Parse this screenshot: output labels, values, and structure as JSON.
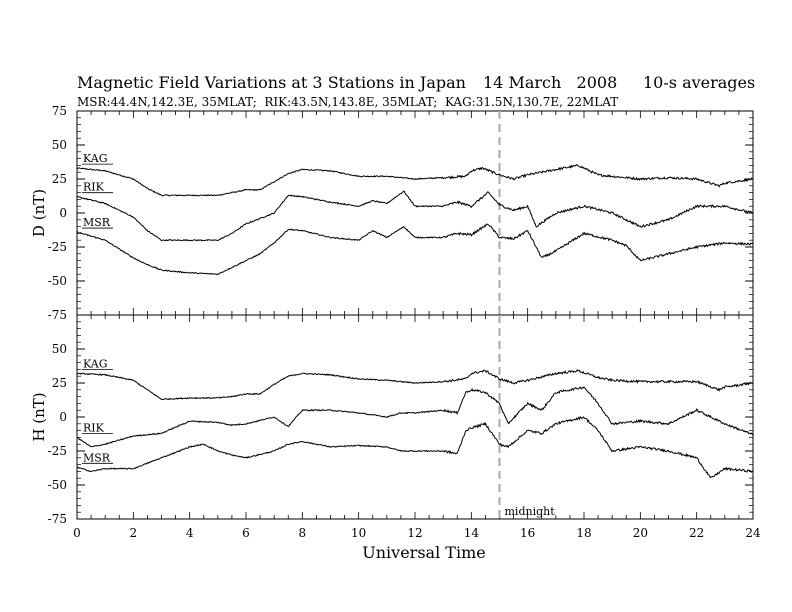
{
  "header": {
    "title": "Magnetic Field Variations at 3 Stations in Japan",
    "date": "14 March   2008",
    "averages": "10-s averages",
    "stations": "MSR:44.4N,142.3E, 35MLAT;  RIK:43.5N,143.8E, 35MLAT;  KAG:31.5N,130.7E, 22MLAT"
  },
  "chart_data": [
    {
      "type": "line",
      "ylabel": "D (nT)",
      "ylim": [
        -75,
        75
      ],
      "xlim": [
        0,
        24
      ],
      "yticks": [
        "75",
        "50",
        "25",
        "0",
        "-25",
        "-50",
        "-75"
      ],
      "annotation": "",
      "series": [
        {
          "name": "KAG",
          "x": [
            0,
            1,
            2,
            2.5,
            3,
            4,
            5,
            5.5,
            6,
            6.5,
            7,
            7.5,
            8,
            9,
            10,
            11,
            12,
            13,
            13.8,
            14,
            14.4,
            15,
            15.5,
            16,
            17,
            17.8,
            18.5,
            19,
            20,
            21,
            22,
            22.8,
            23,
            24
          ],
          "y": [
            33,
            31,
            25,
            18,
            13,
            13,
            13,
            15,
            17,
            17,
            23,
            29,
            32,
            31,
            27,
            27,
            25,
            26,
            27,
            31,
            33,
            28,
            25,
            28,
            32,
            35,
            28,
            27,
            25,
            26,
            25,
            20,
            22,
            25
          ]
        },
        {
          "name": "RIK",
          "x": [
            0,
            1,
            2,
            2.5,
            3,
            4,
            5,
            5.5,
            6,
            6.5,
            7,
            7.5,
            8,
            9,
            10,
            10.5,
            11,
            11.6,
            12,
            13,
            13.5,
            14,
            14.6,
            15,
            15.5,
            16,
            16.3,
            17,
            18,
            19,
            19.5,
            20,
            21,
            22,
            23,
            24
          ],
          "y": [
            12,
            7,
            -3,
            -13,
            -20,
            -20,
            -20,
            -15,
            -8,
            -4,
            0,
            13,
            12,
            8,
            5,
            9,
            7,
            16,
            5,
            5,
            8,
            5,
            15,
            6,
            2,
            5,
            -10,
            0,
            5,
            0,
            -5,
            -10,
            -5,
            5,
            5,
            0
          ]
        },
        {
          "name": "MSR",
          "x": [
            0,
            1,
            2,
            2.5,
            3,
            4,
            5,
            5.5,
            6,
            6.5,
            7,
            7.5,
            8,
            9,
            10,
            10.5,
            11,
            11.6,
            12,
            13,
            13.5,
            14,
            14.6,
            15,
            15.5,
            16,
            16.5,
            17,
            18,
            19,
            19.5,
            20,
            21,
            22,
            23,
            24
          ],
          "y": [
            -14,
            -20,
            -33,
            -38,
            -42,
            -44,
            -45,
            -40,
            -35,
            -30,
            -22,
            -12,
            -13,
            -18,
            -20,
            -13,
            -18,
            -10,
            -18,
            -18,
            -15,
            -16,
            -8,
            -18,
            -19,
            -13,
            -33,
            -28,
            -15,
            -20,
            -24,
            -35,
            -30,
            -25,
            -22,
            -23
          ]
        }
      ]
    },
    {
      "type": "line",
      "ylabel": "H (nT)",
      "xlabel": "Universal Time",
      "ylim": [
        -75,
        75
      ],
      "xlim": [
        0,
        24
      ],
      "yticks": [
        "50",
        "25",
        "0",
        "-25",
        "-50",
        "-75"
      ],
      "xticks": [
        "0",
        "2",
        "4",
        "6",
        "8",
        "10",
        "12",
        "14",
        "16",
        "18",
        "20",
        "22",
        "24"
      ],
      "annotation": "midnight",
      "series": [
        {
          "name": "KAG",
          "x": [
            0,
            1,
            2,
            2.5,
            3,
            4,
            5,
            5.5,
            6,
            6.5,
            7,
            7.5,
            8,
            9,
            10,
            11,
            12,
            13,
            13.8,
            14,
            14.5,
            15,
            15.5,
            16,
            17,
            17.8,
            18.5,
            19,
            20,
            21,
            22,
            22.8,
            23,
            24
          ],
          "y": [
            32,
            31,
            27,
            20,
            13,
            14,
            14,
            15,
            17,
            17,
            24,
            30,
            32,
            31,
            28,
            27,
            25,
            26,
            28,
            32,
            34,
            28,
            25,
            27,
            32,
            34,
            29,
            27,
            26,
            26,
            26,
            20,
            22,
            25
          ]
        },
        {
          "name": "RIK",
          "x": [
            0,
            0.5,
            1,
            2,
            3,
            4,
            5,
            5.5,
            6,
            7,
            7.5,
            8,
            9,
            10,
            11,
            11.5,
            12,
            13,
            13.5,
            13.8,
            14,
            14.5,
            15,
            15.3,
            16,
            16.5,
            17,
            18,
            18.5,
            19,
            20,
            21,
            22,
            23,
            24
          ],
          "y": [
            -15,
            -22,
            -20,
            -14,
            -12,
            -3,
            -4,
            -6,
            -5,
            0,
            -7,
            5,
            5,
            3,
            0,
            3,
            3,
            5,
            3,
            18,
            20,
            18,
            10,
            -5,
            10,
            5,
            18,
            22,
            10,
            -5,
            -3,
            -5,
            5,
            -5,
            -13
          ]
        },
        {
          "name": "MSR",
          "x": [
            0,
            0.5,
            1,
            2,
            3,
            4,
            4.5,
            5,
            5.5,
            6,
            7,
            7.5,
            8,
            9,
            10,
            11,
            11.5,
            12,
            13,
            13.5,
            13.8,
            14,
            14.5,
            15,
            15.3,
            16,
            16.5,
            17,
            18,
            18.5,
            19,
            20,
            21,
            22,
            22.5,
            23,
            24
          ],
          "y": [
            -37,
            -40,
            -38,
            -38,
            -30,
            -22,
            -20,
            -25,
            -28,
            -30,
            -25,
            -20,
            -18,
            -22,
            -21,
            -22,
            -25,
            -25,
            -25,
            -27,
            -10,
            -8,
            -5,
            -20,
            -22,
            -10,
            -12,
            -5,
            0,
            -10,
            -25,
            -22,
            -25,
            -30,
            -45,
            -38,
            -40
          ]
        }
      ]
    }
  ]
}
